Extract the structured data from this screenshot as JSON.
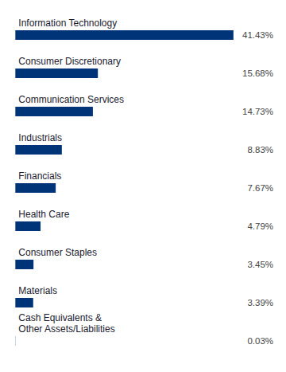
{
  "chart_data": {
    "type": "bar",
    "orientation": "horizontal",
    "categories": [
      "Information Technology",
      "Consumer Discretionary",
      "Communication Services",
      "Industrials",
      "Financials",
      "Health Care",
      "Consumer Staples",
      "Materials",
      "Cash Equivalents &\nOther Assets/Liabilities"
    ],
    "values": [
      41.43,
      15.68,
      14.73,
      8.83,
      7.67,
      4.79,
      3.45,
      3.39,
      0.03
    ],
    "value_labels": [
      "41.43%",
      "15.68%",
      "14.73%",
      "8.83%",
      "7.67%",
      "4.79%",
      "3.45%",
      "3.39%",
      "0.03%"
    ],
    "data_labels": true,
    "color": "#003478",
    "xlim": [
      -0.5,
      49
    ],
    "tick_labels": false,
    "grid": false
  }
}
